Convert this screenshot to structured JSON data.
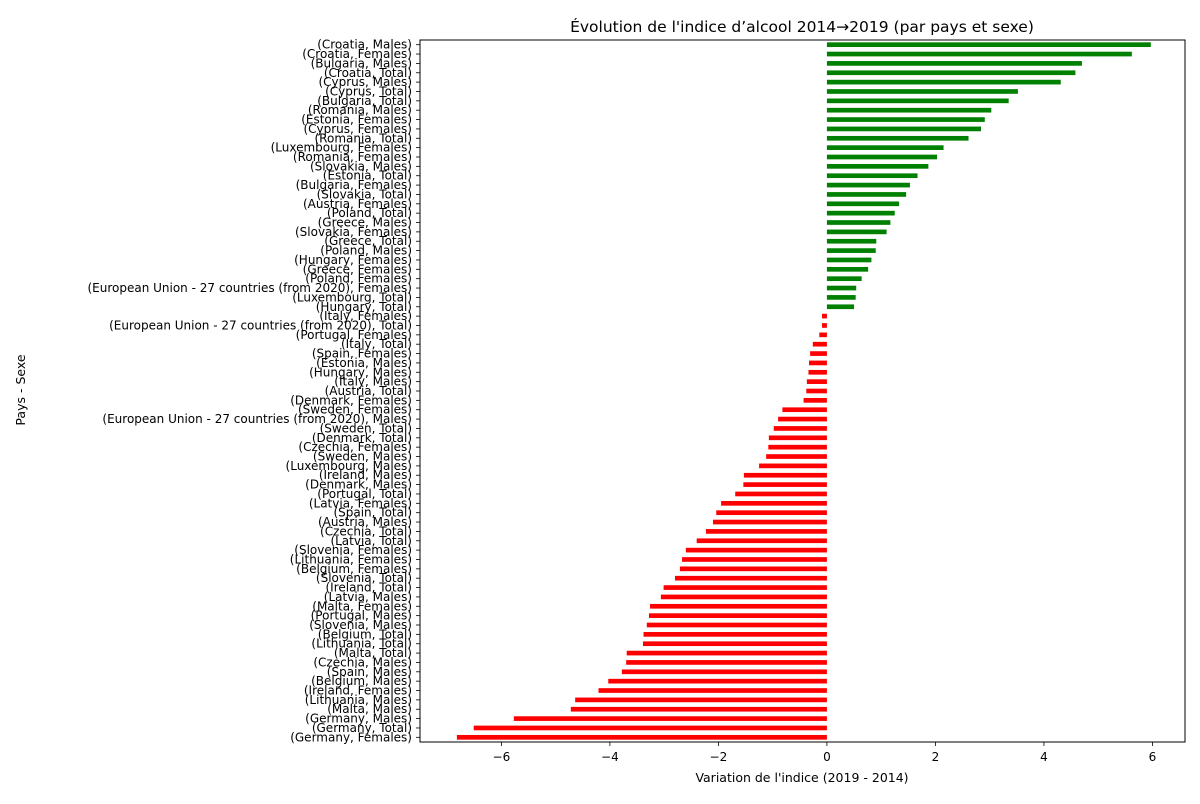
{
  "chart_data": {
    "type": "bar",
    "orientation": "horizontal",
    "title": "Évolution de l'indice d’alcool 2014→2019 (par pays et sexe)",
    "xlabel": "Variation de l'indice (2019 - 2014)",
    "ylabel": "Pays - Sexe",
    "xlim": [
      -7.5,
      6.6
    ],
    "xticks": [
      -6,
      -4,
      -2,
      0,
      2,
      4,
      6
    ],
    "xtick_labels": [
      "−6",
      "−4",
      "−2",
      "0",
      "2",
      "4",
      "6"
    ],
    "grid": false,
    "colors": {
      "positive": "#008000",
      "negative": "#ff0000"
    },
    "categories": [
      "(Croatia, Males)",
      "(Croatia, Females)",
      "(Bulgaria, Males)",
      "(Croatia, Total)",
      "(Cyprus, Males)",
      "(Cyprus, Total)",
      "(Bulgaria, Total)",
      "(Romania, Males)",
      "(Estonia, Females)",
      "(Cyprus, Females)",
      "(Romania, Total)",
      "(Luxembourg, Females)",
      "(Romania, Females)",
      "(Slovakia, Males)",
      "(Estonia, Total)",
      "(Bulgaria, Females)",
      "(Slovakia, Total)",
      "(Austria, Females)",
      "(Poland, Total)",
      "(Greece, Males)",
      "(Slovakia, Females)",
      "(Greece, Total)",
      "(Poland, Males)",
      "(Hungary, Females)",
      "(Greece, Females)",
      "(Poland, Females)",
      "(European Union - 27 countries (from 2020), Females)",
      "(Luxembourg, Total)",
      "(Hungary, Total)",
      "(Italy, Females)",
      "(European Union - 27 countries (from 2020), Total)",
      "(Portugal, Females)",
      "(Italy, Total)",
      "(Spain, Females)",
      "(Estonia, Males)",
      "(Hungary, Males)",
      "(Italy, Males)",
      "(Austria, Total)",
      "(Denmark, Females)",
      "(Sweden, Females)",
      "(European Union - 27 countries (from 2020), Males)",
      "(Sweden, Total)",
      "(Denmark, Total)",
      "(Czechia, Females)",
      "(Sweden, Males)",
      "(Luxembourg, Males)",
      "(Ireland, Males)",
      "(Denmark, Males)",
      "(Portugal, Total)",
      "(Latvia, Females)",
      "(Spain, Total)",
      "(Austria, Males)",
      "(Czechia, Total)",
      "(Latvia, Total)",
      "(Slovenia, Females)",
      "(Lithuania, Females)",
      "(Belgium, Females)",
      "(Slovenia, Total)",
      "(Ireland, Total)",
      "(Latvia, Males)",
      "(Malta, Females)",
      "(Portugal, Males)",
      "(Slovenia, Males)",
      "(Belgium, Total)",
      "(Lithuania, Total)",
      "(Malta, Total)",
      "(Czechia, Males)",
      "(Spain, Males)",
      "(Belgium, Males)",
      "(Ireland, Females)",
      "(Lithuania, Males)",
      "(Malta, Males)",
      "(Germany, Males)",
      "(Germany, Total)",
      "(Germany, Females)"
    ],
    "values": [
      5.97,
      5.62,
      4.7,
      4.58,
      4.31,
      3.52,
      3.35,
      3.03,
      2.91,
      2.84,
      2.61,
      2.15,
      2.03,
      1.87,
      1.67,
      1.53,
      1.46,
      1.33,
      1.25,
      1.17,
      1.1,
      0.91,
      0.9,
      0.82,
      0.76,
      0.64,
      0.54,
      0.53,
      0.5,
      -0.09,
      -0.09,
      -0.14,
      -0.26,
      -0.31,
      -0.33,
      -0.34,
      -0.37,
      -0.38,
      -0.43,
      -0.82,
      -0.9,
      -0.98,
      -1.07,
      -1.08,
      -1.12,
      -1.25,
      -1.53,
      -1.54,
      -1.69,
      -1.95,
      -2.04,
      -2.1,
      -2.23,
      -2.4,
      -2.6,
      -2.67,
      -2.71,
      -2.8,
      -3.01,
      -3.06,
      -3.26,
      -3.28,
      -3.32,
      -3.38,
      -3.39,
      -3.69,
      -3.7,
      -3.78,
      -4.03,
      -4.21,
      -4.64,
      -4.72,
      -5.77,
      -6.51,
      -6.82
    ]
  }
}
